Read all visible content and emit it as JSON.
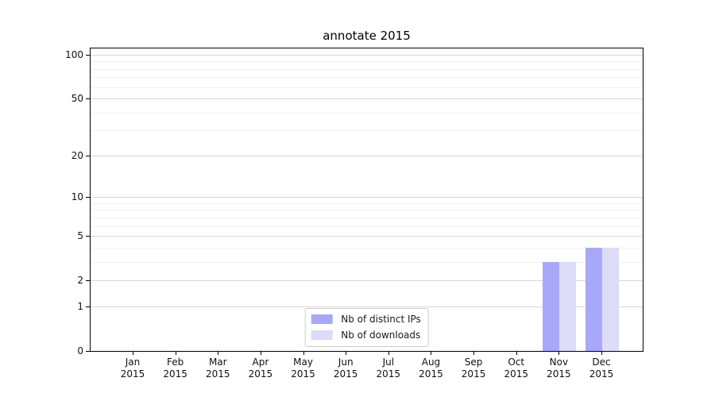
{
  "chart_data": {
    "type": "bar",
    "title": "annotate 2015",
    "x_tick_year": "2015",
    "categories": [
      "Jan",
      "Feb",
      "Mar",
      "Apr",
      "May",
      "Jun",
      "Jul",
      "Aug",
      "Sep",
      "Oct",
      "Nov",
      "Dec"
    ],
    "series": [
      {
        "name": "Nb of distinct IPs",
        "color": "#a8a8f8",
        "values": [
          0,
          0,
          0,
          0,
          0,
          0,
          0,
          0,
          0,
          0,
          3,
          4
        ]
      },
      {
        "name": "Nb of downloads",
        "color": "#dcdcf9",
        "values": [
          0,
          0,
          0,
          0,
          0,
          0,
          0,
          0,
          0,
          0,
          3,
          4
        ]
      }
    ],
    "y_axis": {
      "scale": "log1p",
      "major_ticks": [
        0,
        1,
        2,
        5,
        10,
        20,
        50,
        100
      ],
      "minor_gridlines": [
        3,
        4,
        6,
        7,
        8,
        9,
        30,
        40,
        60,
        70,
        80,
        90
      ],
      "ylim": [
        0,
        110
      ]
    },
    "legend": {
      "position": "lower center",
      "entries": [
        "Nb of distinct IPs",
        "Nb of downloads"
      ]
    },
    "grid": true
  },
  "colors": {
    "major_grid": "#d7d7d7",
    "minor_grid": "#efefef",
    "axis": "#000000",
    "text": "#111111",
    "legend_border": "#cccccc",
    "legend_bg": "rgba(255,255,255,0.85)"
  }
}
